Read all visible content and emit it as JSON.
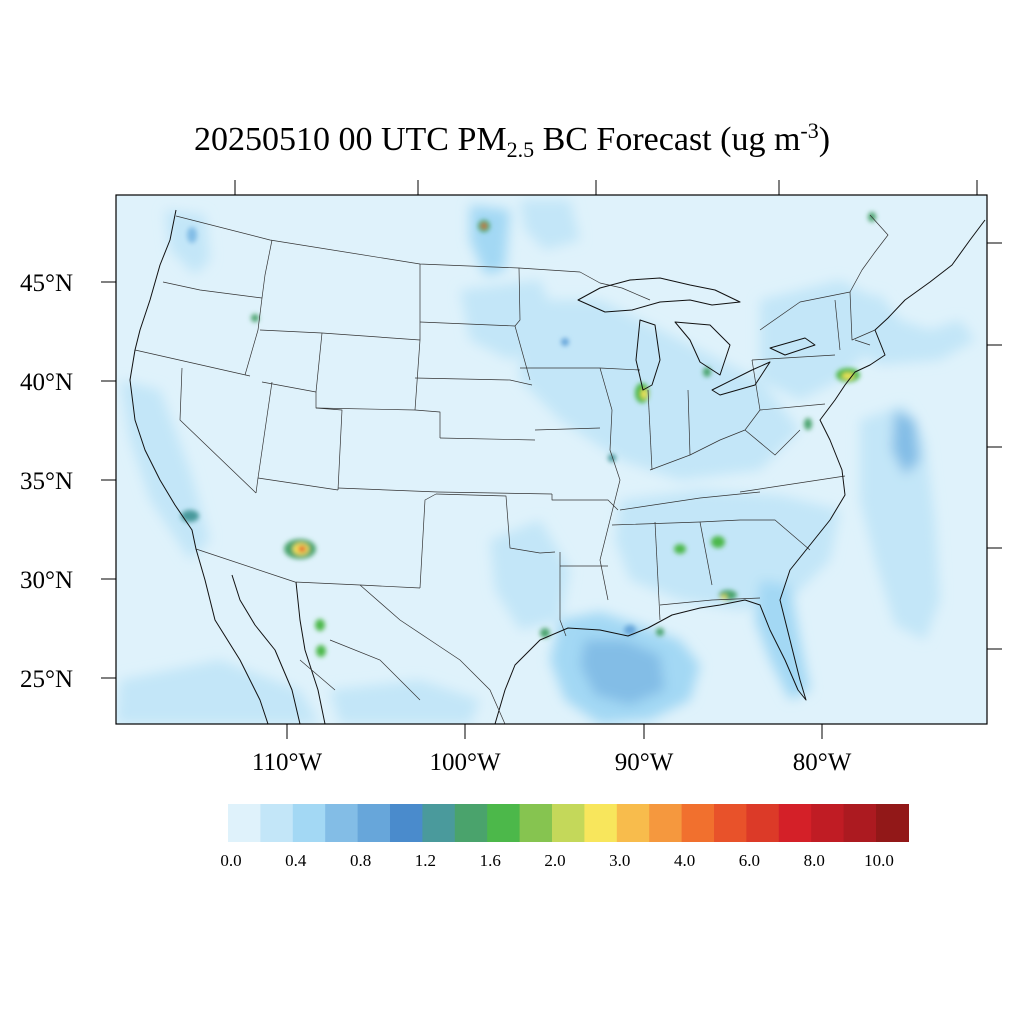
{
  "title": {
    "date": "20250510",
    "hour": "00 UTC",
    "species": "PM",
    "species_sub": "2.5",
    "variable": "BC Forecast",
    "units_open": "(ug m",
    "units_exp": "-3",
    "units_close": ")"
  },
  "map": {
    "lat_labels": [
      "45°N",
      "40°N",
      "35°N",
      "30°N",
      "25°N"
    ],
    "lon_labels": [
      "110°W",
      "100°W",
      "90°W",
      "80°W"
    ],
    "lat_values": [
      45,
      40,
      35,
      30,
      25
    ],
    "lon_values": [
      -110,
      -100,
      -90,
      -80
    ]
  },
  "colorbar": {
    "colors": [
      "#dff2fb",
      "#c3e6f8",
      "#a3d8f4",
      "#83bde6",
      "#67a6da",
      "#4a8bcc",
      "#4a9a9c",
      "#4aa36c",
      "#4cb84a",
      "#86c450",
      "#c4d85a",
      "#f8e65c",
      "#f8bc4c",
      "#f5983e",
      "#f1702e",
      "#e8522a",
      "#dc3a28",
      "#d42028",
      "#c01c24",
      "#ac1a20",
      "#921818"
    ],
    "tick_labels": [
      "0.0",
      "0.4",
      "0.8",
      "1.2",
      "1.6",
      "2.0",
      "3.0",
      "4.0",
      "6.0",
      "8.0",
      "10.0"
    ]
  }
}
